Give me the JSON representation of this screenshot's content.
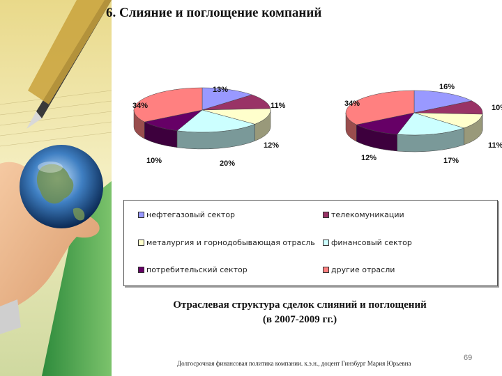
{
  "slide": {
    "title": "6. Слияние и поглощение компаний",
    "caption_line1": "Отраслевая структура сделок слияний и поглощений",
    "caption_line2": "(в 2007-2009 гг.)",
    "footer": "Долгосрочная финансовая политика компании.  к.э.н., доцент Гинзбург Мария Юрьевна",
    "page_number": "69"
  },
  "legend": [
    {
      "label": "нефтегазовый сектор",
      "color": "#9999ff"
    },
    {
      "label": "телекомуникации",
      "color": "#993366"
    },
    {
      "label": "металургия и горнодобывающая отрасль",
      "color": "#ffffcc"
    },
    {
      "label": "финансовый сектор",
      "color": "#ccffff"
    },
    {
      "label": "потребительский сектор",
      "color": "#660066"
    },
    {
      "label": "другие отрасли",
      "color": "#ff8080"
    }
  ],
  "chart_data": [
    {
      "type": "pie",
      "categories": [
        "нефтегазовый сектор",
        "телекомуникации",
        "металургия и горнодобывающая отрасль",
        "финансовый сектор",
        "потребительский сектор",
        "другие отрасли"
      ],
      "values": [
        13,
        11,
        12,
        20,
        10,
        34
      ],
      "labels": [
        "13%",
        "11%",
        "12%",
        "20%",
        "10%",
        "34%"
      ]
    },
    {
      "type": "pie",
      "categories": [
        "нефтегазовый сектор",
        "телекомуникации",
        "металургия и горнодобывающая отрасль",
        "финансовый сектор",
        "потребительский сектор",
        "другие отрасли"
      ],
      "values": [
        16,
        10,
        11,
        17,
        12,
        34
      ],
      "labels": [
        "16%",
        "10%",
        "11%",
        "17%",
        "12%",
        "34%"
      ]
    }
  ]
}
